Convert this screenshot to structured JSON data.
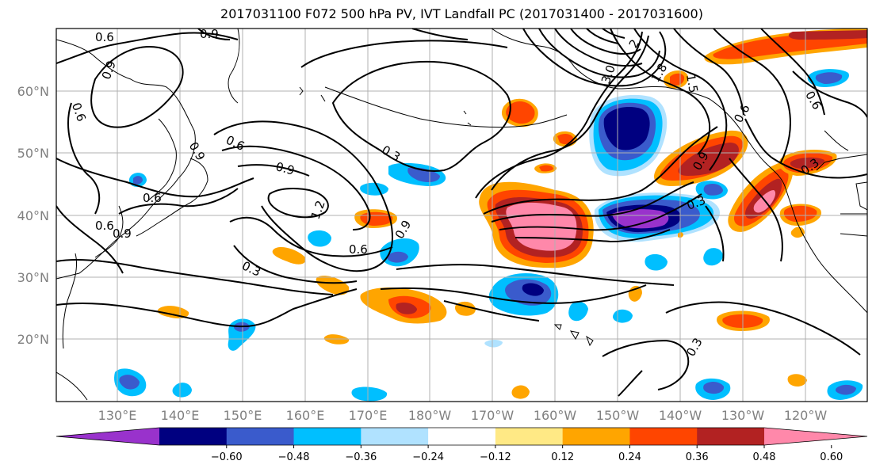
{
  "title": "2017031100 F072 500 hPa PV, IVT Landfall PC (2017031400 - 2017031600)",
  "lat_labels": [
    "60°N",
    "50°N",
    "40°N",
    "30°N",
    "20°N"
  ],
  "lon_labels": [
    "130°E",
    "140°E",
    "150°E",
    "160°E",
    "170°E",
    "180°W",
    "170°W",
    "160°W",
    "150°W",
    "140°W",
    "130°W",
    "120°W"
  ],
  "colorbar": {
    "colors": [
      "#9932CC",
      "#000080",
      "#3A5BCC",
      "#00BFFF",
      "#B0E2FF",
      "#FFFFFF",
      "#FFE985",
      "#FFA500",
      "#FF4500",
      "#B22222",
      "#FF88AA"
    ],
    "tick_labels": [
      "−0.60",
      "−0.48",
      "−0.36",
      "−0.24",
      "−0.12",
      "0.12",
      "0.24",
      "0.36",
      "0.48",
      "0.60"
    ]
  },
  "contour_labels": [
    "0.6",
    "0.9",
    "0.9",
    "0.6",
    "0.6",
    "0.9",
    "0.6",
    "0.6",
    "0.9",
    "1.2",
    "0.9",
    "0.3",
    "0.6",
    "0.3",
    "0.9",
    "3.0",
    "1.8",
    "1.5",
    "2",
    "0.6",
    "0.6",
    "0.9",
    "0.3",
    "0.3",
    "0.3"
  ]
}
